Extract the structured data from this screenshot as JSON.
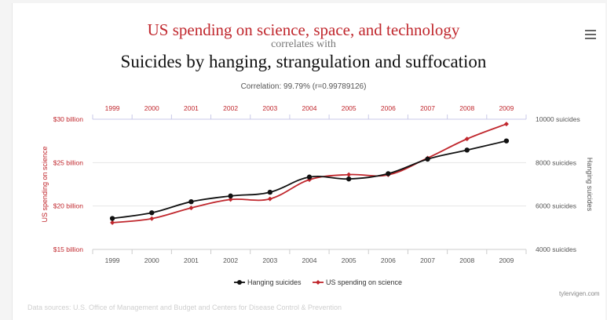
{
  "header": {
    "title_top": "US spending on science, space, and technology",
    "title_mid": "correlates with",
    "title_main": "Suicides by hanging, strangulation and suffocation",
    "correlation": "Correlation: 99.79% (r=0.99789126)"
  },
  "menu": {
    "icon": "hamburger-menu-icon"
  },
  "footer": {
    "sources": "Data sources: U.S. Office of Management and Budget and Centers for Disease Control & Prevention",
    "credit": "tylervigen.com"
  },
  "colors": {
    "spending": "#c0272d",
    "suicides": "#111111",
    "grid": "#e6e6e6"
  },
  "chart_data": {
    "type": "line",
    "x": [
      "1999",
      "2000",
      "2001",
      "2002",
      "2003",
      "2004",
      "2005",
      "2006",
      "2007",
      "2008",
      "2009"
    ],
    "series": [
      {
        "name": "Hanging suicides",
        "axis": "right",
        "color": "#111111",
        "values": [
          5427,
          5688,
          6198,
          6462,
          6635,
          7336,
          7248,
          7491,
          8161,
          8578,
          9000
        ]
      },
      {
        "name": "US spending on science",
        "axis": "left",
        "color": "#c0272d",
        "values": [
          18.08,
          18.55,
          19.78,
          20.75,
          20.82,
          23.03,
          23.62,
          23.59,
          25.53,
          27.73,
          29.45
        ]
      }
    ],
    "y_left": {
      "label": "US spending on science",
      "ticks": [
        "$15 billion",
        "$20 billion",
        "$25 billion",
        "$30 billion"
      ],
      "range": [
        15,
        30
      ]
    },
    "y_right": {
      "label": "Hanging suicides",
      "ticks": [
        "4000 suicides",
        "6000 suicides",
        "8000 suicides",
        "10000 suicides"
      ],
      "range": [
        4000,
        10000
      ]
    },
    "legend": {
      "position": "bottom",
      "entries": [
        "Hanging suicides",
        "US spending on science"
      ]
    },
    "grid": true
  }
}
